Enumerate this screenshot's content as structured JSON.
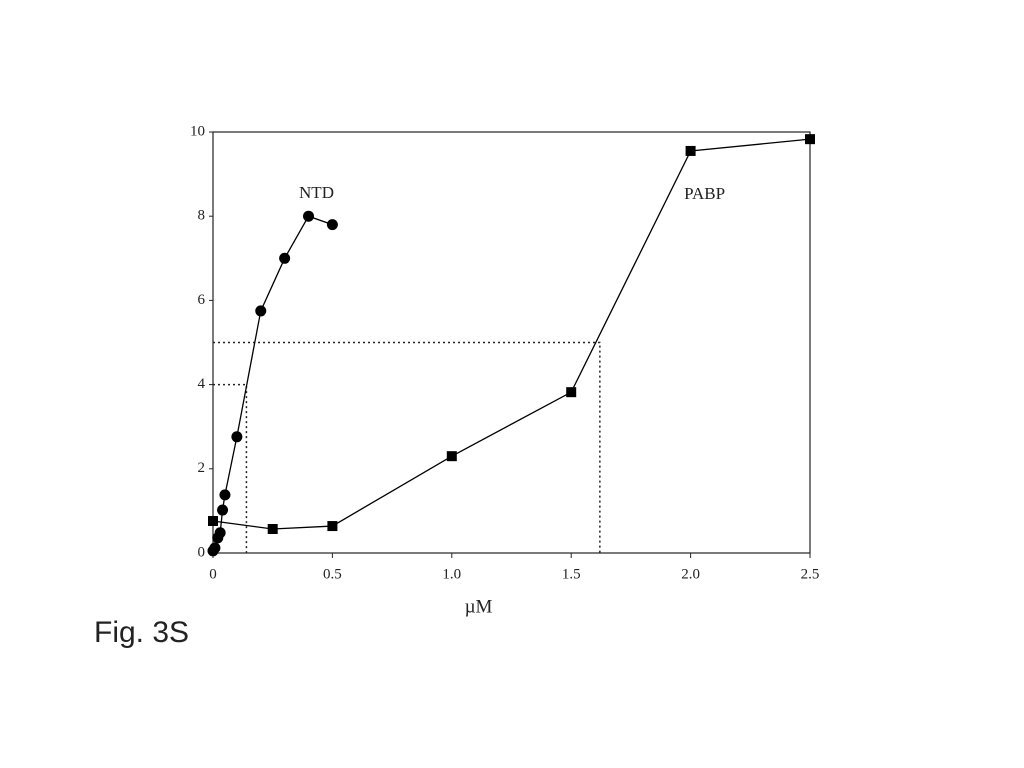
{
  "chart_data": {
    "type": "line",
    "xlabel": "µM",
    "xlim": [
      0,
      2.5
    ],
    "xticks": [
      0,
      0.5,
      {
        "value": 1,
        "label": "1.0"
      },
      1.5,
      {
        "value": 2,
        "label": "2.0"
      },
      2.5
    ],
    "ylim": [
      0,
      10
    ],
    "yticks": [
      0,
      2,
      4,
      6,
      8,
      10
    ],
    "grid": false,
    "series": [
      {
        "name": "NTD",
        "color": "#000000",
        "marker": "circle",
        "x": [
          0,
          0.008,
          0.02,
          0.03,
          0.04,
          0.05,
          0.1,
          0.2,
          0.3,
          0.4,
          0.5
        ],
        "values": [
          0.05,
          0.12,
          0.36,
          0.48,
          1.02,
          1.38,
          2.76,
          5.75,
          7.0,
          8.0,
          7.8
        ]
      },
      {
        "name": "PABP",
        "color": "#000000",
        "marker": "square",
        "x": [
          0,
          0.25,
          0.5,
          1.0,
          1.5,
          2.0,
          2.5
        ],
        "values": [
          0.76,
          0.57,
          0.64,
          2.3,
          3.82,
          9.55,
          9.83
        ]
      }
    ],
    "reference_lines": [
      {
        "x": 0.14,
        "y": 4
      },
      {
        "x": 1.62,
        "y": 5
      }
    ]
  },
  "caption": "Fig. 3S"
}
